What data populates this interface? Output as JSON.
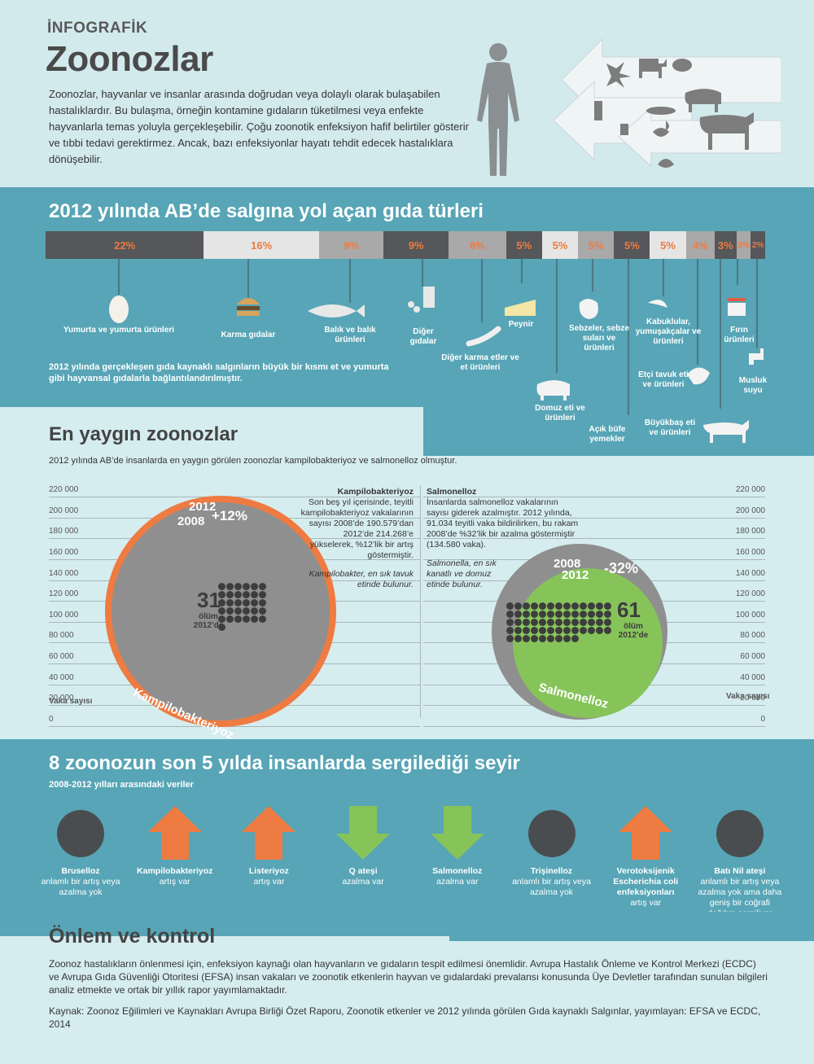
{
  "header": {
    "kicker": "İNFOGRAFİK",
    "title": "Zoonozlar",
    "intro": "Zoonozlar, hayvanlar ve insanlar arasında doğrudan veya dolaylı olarak bulaşabilen hastalıklardır. Bu bulaşma, örneğin kontamine gıdaların tüketilmesi veya enfekte hayvanlarla temas yoluyla gerçekleşebilir. Çoğu zoonotik enfeksiyon hafif belirtiler gösterir ve tıbbi tedavi gerektirmez. Ancak, bazı enfeksiyonlar hayatı tehdit edecek hastalıklara dönüşebilir."
  },
  "foods": {
    "title": "2012 yılında AB’de salgına yol açan gıda türleri",
    "note": "2012 yılında gerçekleşen gıda kaynaklı salgınların büyük bir kısmı et ve yumurta gibi hayvansal gıdalarla bağlantılandırılmıştır.",
    "segments": [
      {
        "pct": "22%",
        "share": 22,
        "color": "#55575a",
        "label": "Yumurta ve yumurta ürünleri"
      },
      {
        "pct": "16%",
        "share": 16,
        "color": "#e5e5e5",
        "label": "Karma gıdalar"
      },
      {
        "pct": "9%",
        "share": 9,
        "color": "#a9a9a9",
        "label": "Balık ve balık ürünleri"
      },
      {
        "pct": "9%",
        "share": 9,
        "color": "#55575a",
        "label": "Diğer gıdalar"
      },
      {
        "pct": "8%",
        "share": 8,
        "color": "#a9a9a9",
        "label": "Diğer karma etler ve et ürünleri"
      },
      {
        "pct": "5%",
        "share": 5,
        "color": "#55575a",
        "label": "Peynir"
      },
      {
        "pct": "5%",
        "share": 5,
        "color": "#e5e5e5",
        "label": "Domuz eti ve ürünleri"
      },
      {
        "pct": "5%",
        "share": 5,
        "color": "#a9a9a9",
        "label": "Sebzeler, sebze suları ve ürünleri"
      },
      {
        "pct": "5%",
        "share": 5,
        "color": "#55575a",
        "label": "Açık büfe yemekler"
      },
      {
        "pct": "5%",
        "share": 5,
        "color": "#e5e5e5",
        "label": "Kabuklular, yumuşakçalar ve ürünleri"
      },
      {
        "pct": "4%",
        "share": 4,
        "color": "#a9a9a9",
        "label": "Etçi tavuk eti ve ürünleri"
      },
      {
        "pct": "3%",
        "share": 3,
        "color": "#55575a",
        "label": "Büyükbaş eti ve ürünleri"
      },
      {
        "pct": "2%",
        "share": 2,
        "color": "#a9a9a9",
        "label": "Fırın ürünleri"
      },
      {
        "pct": "2%",
        "share": 2,
        "color": "#55575a",
        "label": "Musluk suyu"
      }
    ]
  },
  "common": {
    "title": "En yaygın zoonozlar",
    "subtitle": "2012 yılında AB’de insanlarda en yaygın görülen zoonozlar kampilobakteriyoz ve salmonelloz olmuştur.",
    "axis_ticks": [
      "220 000",
      "200 000",
      "180 000",
      "160 000",
      "140 000",
      "120 000",
      "100 000",
      "80 000",
      "60 000",
      "40 000",
      "20 000",
      "0"
    ],
    "axis_title": "Vaka sayısı",
    "campy": {
      "heading": "Kampilobakteriyoz",
      "text": "Son beş yıl içerisinde, teyitli kampilobakteriyoz vakalarının sayısı 2008’de 190.579’dan 2012’de 214.268’e yükselerek, %12’lik bir artış göstermiştir.",
      "note": "Kampilobakter, en sık tavuk etinde bulunur.",
      "year_a": "2012",
      "year_b": "2008",
      "change": "+12%",
      "deaths": "31",
      "deaths_label": "ölüm 2012’de",
      "name": "Kampilobakteriyoz",
      "cases_2008": 190579,
      "cases_2012": 214268
    },
    "salmo": {
      "heading": "Salmonelloz",
      "text": "İnsanlarda salmonelloz vakalarının sayısı giderek azalmıştır. 2012 yılında, 91.034 teyitli vaka bildirilirken, bu rakam 2008’de %32’lik bir azalma göstermiştir (134.580 vaka).",
      "note": "Salmonella, en sık kanatlı ve domuz etinde bulunur.",
      "year_a": "2008",
      "year_b": "2012",
      "change": "-32%",
      "deaths": "61",
      "deaths_label": "ölüm 2012’de",
      "name": "Salmonelloz",
      "cases_2008": 134580,
      "cases_2012": 91034
    }
  },
  "trends": {
    "title": "8 zoonozun son 5 yılda insanlarda sergilediği seyir",
    "subtitle": "2008-2012 yılları arasındaki veriler",
    "items": [
      {
        "kind": "none",
        "name": "Bruselloz",
        "desc": "anlamlı bir artış veya azalma yok"
      },
      {
        "kind": "up",
        "name": "Kampilobakteriyoz",
        "desc": "artış var"
      },
      {
        "kind": "up",
        "name": "Listeriyoz",
        "desc": "artış var"
      },
      {
        "kind": "down",
        "name": "Q ateşi",
        "desc": "azalma var"
      },
      {
        "kind": "down",
        "name": "Salmonelloz",
        "desc": "azalma var"
      },
      {
        "kind": "none",
        "name": "Trişinelloz",
        "desc": "anlamlı bir artış veya azalma yok"
      },
      {
        "kind": "up",
        "name": "Verotoksijenik Escherichia coli enfeksiyonları",
        "desc": "artış var"
      },
      {
        "kind": "none",
        "name": "Batı Nil ateşi",
        "desc": "anlamlı bir artış veya azalma yok ama daha geniş bir coğrafi dağılım sergiliyor"
      }
    ]
  },
  "prevention": {
    "title": "Önlem ve kontrol",
    "text": "Zoonoz hastalıkların önlenmesi için, enfeksiyon kaynağı olan hayvanların ve gıdaların tespit edilmesi önemlidir. Avrupa Hastalık Önleme ve Kontrol Merkezi (ECDC) ve Avrupa Gıda Güvenliği Otoritesi (EFSA) insan vakaları ve zoonotik etkenlerin hayvan ve gıdalardaki prevalansı konusunda Üye Devletler tarafından sunulan bilgileri analiz etmekte ve ortak bir yıllık rapor yayımlamaktadır.",
    "source": "Kaynak: Zoonoz Eğilimleri ve Kaynakları Avrupa Birliği Özet Raporu, Zoonotik etkenler ve 2012 yılında görülen Gıda kaynaklı Salgınlar, yayımlayan: EFSA ve ECDC, 2014"
  },
  "colors": {
    "teal": "#57a5b6",
    "orange": "#ee7b41",
    "green": "#86c45a",
    "grey": "#8f8f8f",
    "dark": "#55575a"
  }
}
